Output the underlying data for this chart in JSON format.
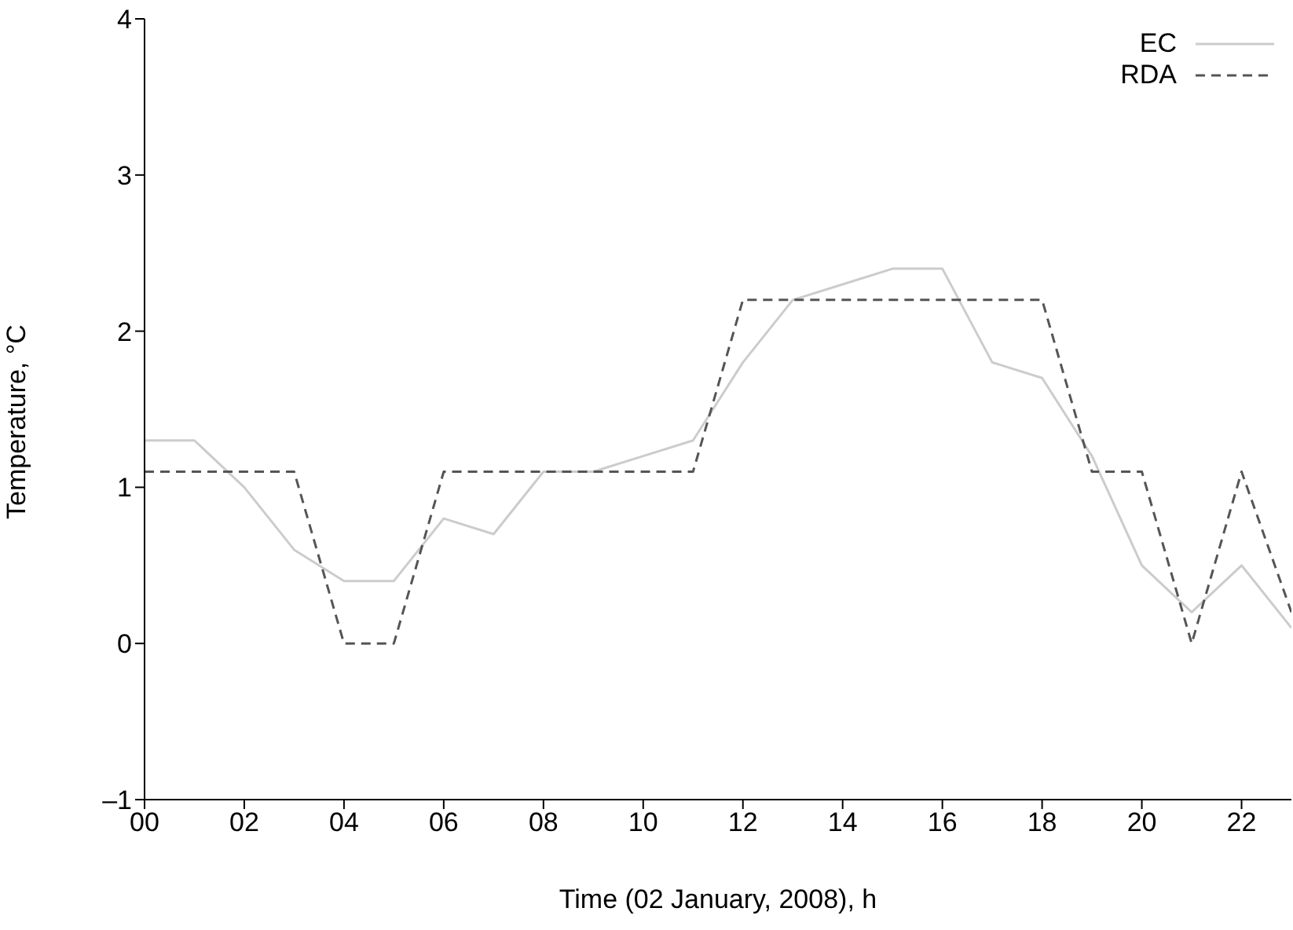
{
  "chart_data": {
    "type": "line",
    "xlabel": "Time (02 January, 2008), h",
    "ylabel": "Temperature, °C",
    "x": [
      0,
      1,
      2,
      3,
      4,
      5,
      6,
      7,
      8,
      9,
      10,
      11,
      12,
      13,
      14,
      15,
      16,
      17,
      18,
      19,
      20,
      21,
      22,
      23
    ],
    "series": [
      {
        "name": "EC",
        "color": "#cccccc",
        "line_style": "solid",
        "values": [
          1.3,
          1.3,
          1.0,
          0.6,
          0.4,
          0.4,
          0.8,
          0.7,
          1.1,
          1.1,
          1.2,
          1.3,
          1.8,
          2.2,
          2.3,
          2.4,
          2.4,
          1.8,
          1.7,
          1.2,
          0.5,
          0.2,
          0.5,
          0.1
        ]
      },
      {
        "name": "RDA",
        "color": "#555555",
        "line_style": "dashed",
        "values": [
          1.1,
          1.1,
          1.1,
          1.1,
          0,
          0,
          1.1,
          1.1,
          1.1,
          1.1,
          1.1,
          1.1,
          2.2,
          2.2,
          2.2,
          2.2,
          2.2,
          2.2,
          2.2,
          1.1,
          1.1,
          0,
          1.1,
          0.2
        ]
      }
    ],
    "xlim": [
      0,
      23
    ],
    "xticks": [
      {
        "value": 0,
        "label": "00"
      },
      {
        "value": 2,
        "label": "02"
      },
      {
        "value": 4,
        "label": "04"
      },
      {
        "value": 6,
        "label": "06"
      },
      {
        "value": 8,
        "label": "08"
      },
      {
        "value": 10,
        "label": "10"
      },
      {
        "value": 12,
        "label": "12"
      },
      {
        "value": 14,
        "label": "14"
      },
      {
        "value": 16,
        "label": "16"
      },
      {
        "value": 18,
        "label": "18"
      },
      {
        "value": 20,
        "label": "20"
      },
      {
        "value": 22,
        "label": "22"
      }
    ],
    "ylim": [
      -1,
      4
    ],
    "yticks": [
      {
        "value": -1,
        "label": "–1"
      },
      0,
      1,
      2,
      3,
      4
    ],
    "grid": false,
    "legend": "top right",
    "marker": "none"
  }
}
